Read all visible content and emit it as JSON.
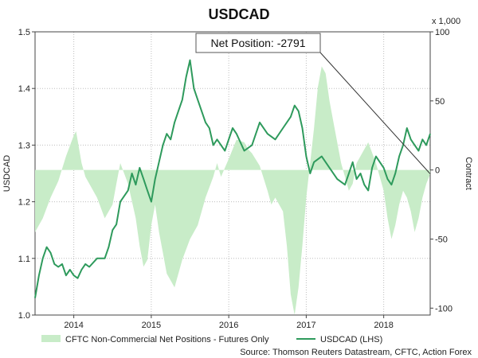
{
  "chart_data": {
    "type": "line",
    "title": "USDCAD",
    "ylabel_left": "USDCAD",
    "ylabel_right": "Contract",
    "right_multiplier_label": "x 1,000",
    "xlim": [
      2013.5,
      2018.6
    ],
    "ylim_left": [
      1.0,
      1.5
    ],
    "ylim_right": [
      -105,
      100
    ],
    "x_ticks": [
      2014,
      2015,
      2016,
      2017,
      2018
    ],
    "x_tick_labels": [
      "2014",
      "2015",
      "2016",
      "2017",
      "2018"
    ],
    "y_ticks_left": [
      1.0,
      1.1,
      1.2,
      1.3,
      1.4,
      1.5
    ],
    "y_tick_labels_left": [
      "1.0",
      "1.1",
      "1.2",
      "1.3",
      "1.4",
      "1.5"
    ],
    "y_ticks_right": [
      -100,
      -50,
      0,
      50,
      100
    ],
    "y_tick_labels_right": [
      "-100",
      "-50",
      "0",
      "50",
      "100"
    ],
    "grid": true,
    "legend_position": "bottom",
    "annotation": {
      "text": "Net Position: -2791",
      "x": 2018.6,
      "y_right": -2.8
    },
    "source": "Source: Thomson Reuters Datastream, CFTC, Action Forex",
    "series": [
      {
        "name": "CFTC Non-Commercial Net Positions - Futures Only",
        "axis": "right",
        "kind": "area",
        "color": "#c8ecc8",
        "x": [
          2013.5,
          2013.6,
          2013.7,
          2013.8,
          2013.9,
          2014.0,
          2014.03,
          2014.06,
          2014.1,
          2014.15,
          2014.2,
          2014.3,
          2014.4,
          2014.5,
          2014.55,
          2014.6,
          2014.7,
          2014.8,
          2014.85,
          2014.9,
          2014.95,
          2015.0,
          2015.05,
          2015.1,
          2015.15,
          2015.2,
          2015.3,
          2015.4,
          2015.5,
          2015.55,
          2015.6,
          2015.65,
          2015.7,
          2015.8,
          2015.85,
          2015.9,
          2016.0,
          2016.1,
          2016.2,
          2016.25,
          2016.3,
          2016.4,
          2016.5,
          2016.55,
          2016.6,
          2016.7,
          2016.75,
          2016.8,
          2016.85,
          2016.9,
          2016.95,
          2017.0,
          2017.05,
          2017.1,
          2017.15,
          2017.2,
          2017.25,
          2017.3,
          2017.35,
          2017.4,
          2017.45,
          2017.5,
          2017.55,
          2017.6,
          2017.65,
          2017.7,
          2017.75,
          2017.8,
          2017.9,
          2018.0,
          2018.05,
          2018.1,
          2018.15,
          2018.2,
          2018.25,
          2018.3,
          2018.35,
          2018.4,
          2018.45,
          2018.5,
          2018.55,
          2018.6
        ],
        "values": [
          -45,
          -35,
          -20,
          -8,
          10,
          25,
          28,
          18,
          5,
          -5,
          -10,
          -20,
          -35,
          -25,
          -10,
          5,
          -10,
          -35,
          -55,
          -70,
          -65,
          -40,
          -25,
          -45,
          -60,
          -75,
          -85,
          -65,
          -50,
          -45,
          -40,
          -30,
          -20,
          -5,
          5,
          -5,
          8,
          22,
          20,
          15,
          12,
          3,
          -15,
          -25,
          -20,
          -30,
          -55,
          -90,
          -105,
          -85,
          -55,
          -20,
          5,
          30,
          60,
          75,
          70,
          50,
          35,
          20,
          5,
          -5,
          -15,
          -10,
          5,
          10,
          15,
          20,
          5,
          -15,
          -35,
          -50,
          -40,
          -25,
          -15,
          -20,
          -30,
          -45,
          -35,
          -20,
          -10,
          -3
        ]
      },
      {
        "name": "USDCAD (LHS)",
        "axis": "left",
        "kind": "line",
        "color": "#2e9a5c",
        "x": [
          2013.5,
          2013.55,
          2013.6,
          2013.65,
          2013.7,
          2013.75,
          2013.8,
          2013.85,
          2013.9,
          2013.95,
          2014.0,
          2014.05,
          2014.1,
          2014.15,
          2014.2,
          2014.3,
          2014.4,
          2014.45,
          2014.5,
          2014.55,
          2014.6,
          2014.7,
          2014.75,
          2014.8,
          2014.85,
          2014.9,
          2014.95,
          2015.0,
          2015.05,
          2015.1,
          2015.15,
          2015.2,
          2015.25,
          2015.3,
          2015.35,
          2015.4,
          2015.45,
          2015.5,
          2015.55,
          2015.6,
          2015.65,
          2015.7,
          2015.75,
          2015.8,
          2015.85,
          2015.9,
          2015.95,
          2016.0,
          2016.05,
          2016.1,
          2016.2,
          2016.3,
          2016.4,
          2016.5,
          2016.6,
          2016.7,
          2016.8,
          2016.85,
          2016.9,
          2016.95,
          2017.0,
          2017.05,
          2017.1,
          2017.2,
          2017.3,
          2017.4,
          2017.5,
          2017.55,
          2017.6,
          2017.65,
          2017.7,
          2017.75,
          2017.8,
          2017.85,
          2017.9,
          2017.95,
          2018.0,
          2018.05,
          2018.1,
          2018.15,
          2018.2,
          2018.25,
          2018.3,
          2018.35,
          2018.4,
          2018.45,
          2018.5,
          2018.55,
          2018.6
        ],
        "values": [
          1.03,
          1.07,
          1.1,
          1.12,
          1.11,
          1.09,
          1.085,
          1.09,
          1.07,
          1.08,
          1.07,
          1.065,
          1.08,
          1.09,
          1.085,
          1.1,
          1.1,
          1.12,
          1.15,
          1.16,
          1.2,
          1.22,
          1.25,
          1.23,
          1.26,
          1.24,
          1.22,
          1.2,
          1.24,
          1.27,
          1.3,
          1.32,
          1.31,
          1.34,
          1.36,
          1.38,
          1.42,
          1.45,
          1.4,
          1.38,
          1.36,
          1.34,
          1.33,
          1.3,
          1.31,
          1.3,
          1.29,
          1.31,
          1.33,
          1.32,
          1.29,
          1.3,
          1.34,
          1.32,
          1.31,
          1.33,
          1.35,
          1.37,
          1.36,
          1.33,
          1.28,
          1.25,
          1.27,
          1.28,
          1.26,
          1.24,
          1.23,
          1.25,
          1.27,
          1.24,
          1.25,
          1.23,
          1.22,
          1.26,
          1.28,
          1.27,
          1.26,
          1.24,
          1.23,
          1.25,
          1.28,
          1.3,
          1.33,
          1.31,
          1.3,
          1.29,
          1.31,
          1.3,
          1.32
        ]
      }
    ]
  }
}
